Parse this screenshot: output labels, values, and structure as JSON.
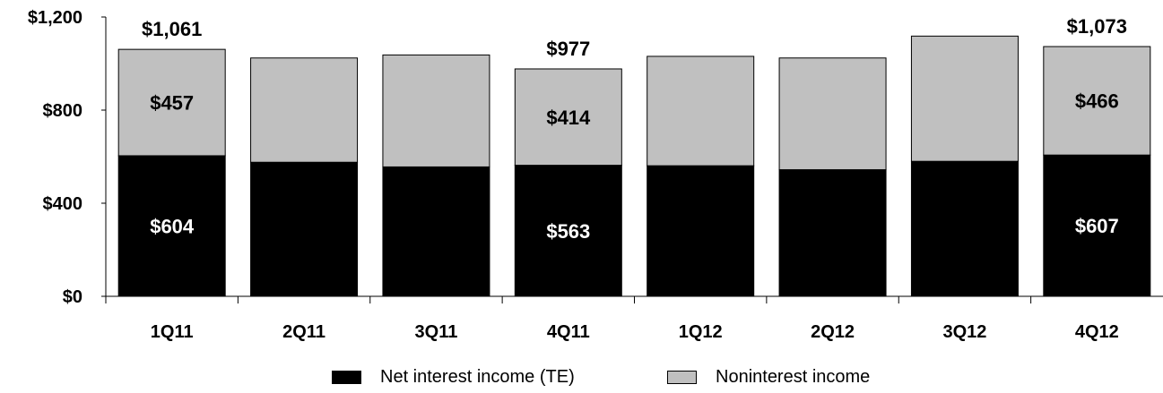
{
  "chart_data": {
    "type": "bar",
    "stacked": true,
    "categories": [
      "1Q11",
      "2Q11",
      "3Q11",
      "4Q11",
      "1Q12",
      "2Q12",
      "3Q12",
      "4Q12"
    ],
    "series": [
      {
        "name": "Net interest income (TE)",
        "color": "#000000",
        "values": [
          604,
          576,
          556,
          563,
          561,
          544,
          580,
          607
        ]
      },
      {
        "name": "Noninterest income",
        "color": "#c0c0c0",
        "values": [
          457,
          448,
          481,
          414,
          470,
          480,
          538,
          466
        ]
      }
    ],
    "ylim": [
      0,
      1200
    ],
    "yticks": [
      "$0",
      "$400",
      "$800",
      "$1,200"
    ],
    "grid": false,
    "legend_position": "bottom",
    "segment_labels": [
      {
        "category": "1Q11",
        "series": 0,
        "text": "$604"
      },
      {
        "category": "1Q11",
        "series": 1,
        "text": "$457"
      },
      {
        "category": "4Q11",
        "series": 0,
        "text": "$563"
      },
      {
        "category": "4Q11",
        "series": 1,
        "text": "$414"
      },
      {
        "category": "4Q12",
        "series": 0,
        "text": "$607"
      },
      {
        "category": "4Q12",
        "series": 1,
        "text": "$466"
      }
    ],
    "total_labels": [
      {
        "category": "1Q11",
        "text": "$1,061"
      },
      {
        "category": "4Q11",
        "text": "$977"
      },
      {
        "category": "4Q12",
        "text": "$1,073"
      }
    ]
  }
}
